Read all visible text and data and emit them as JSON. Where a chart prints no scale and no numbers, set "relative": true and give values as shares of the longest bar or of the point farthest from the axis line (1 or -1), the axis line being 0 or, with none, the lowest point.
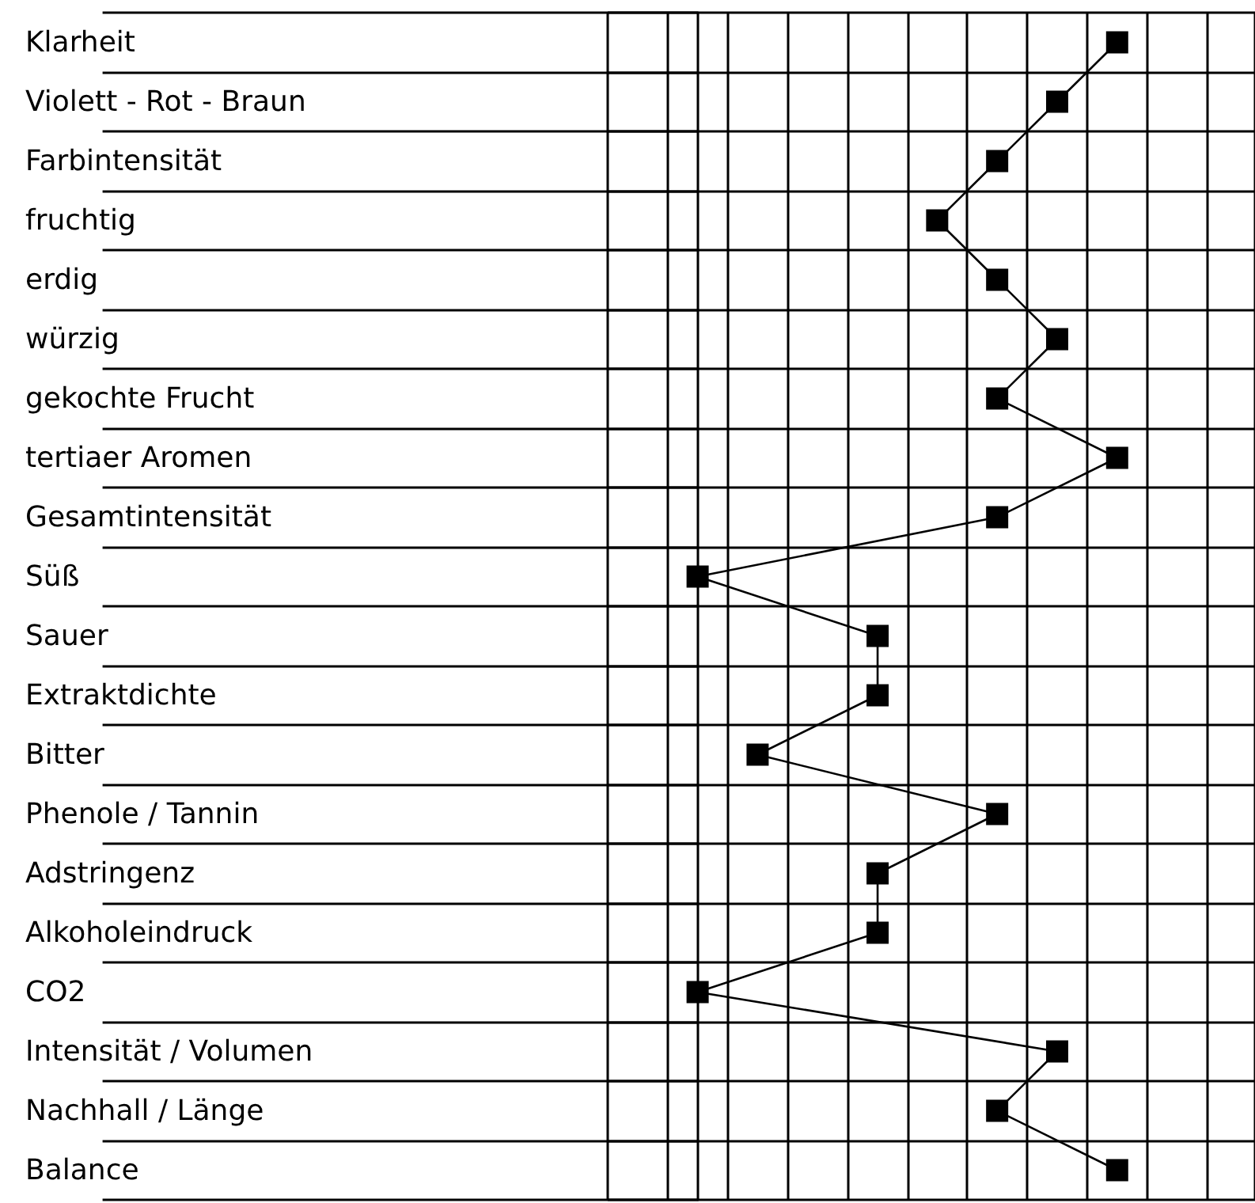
{
  "chart_data": {
    "type": "line",
    "orientation": "horizontal",
    "relative": true,
    "grid": true,
    "marker": "square",
    "line_style": "solid",
    "color": "#000000",
    "categories": [
      "Klarheit",
      "Violett - Rot - Braun",
      "Farbintensität",
      "fruchtig",
      "erdig",
      "würzig",
      "gekochte Frucht",
      "tertiaer Aromen",
      "Gesamtintensität",
      "Süß",
      "Sauer",
      "Extraktdichte",
      "Bitter",
      "Phenole / Tannin",
      "Adstringenz",
      "Alkoholeindruck",
      "CO2",
      "Intensität / Volumen",
      "Nachhall / Länge",
      "Balance"
    ],
    "values": [
      1,
      0.857,
      0.714,
      0.571,
      0.714,
      0.857,
      0.714,
      1,
      0.714,
      0,
      0.429,
      0.429,
      0.143,
      0.714,
      0.429,
      0.429,
      0,
      0.857,
      0.714,
      1
    ]
  }
}
